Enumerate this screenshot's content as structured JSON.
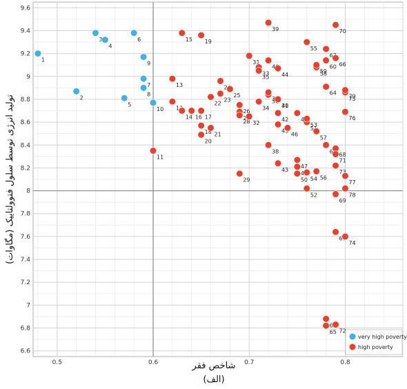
{
  "chart_data": {
    "type": "scatter",
    "xlabel": "شاخص فقر",
    "xlabel_sub": "(الف)",
    "ylabel": "تولید انرژی توسط سلول فتوولتاییک (مگاوات)",
    "xlim": [
      0.475,
      0.86
    ],
    "ylim": [
      6.55,
      9.65
    ],
    "x_ticks": [
      0.5,
      0.6,
      0.7,
      0.8
    ],
    "y_ticks": [
      6.6,
      6.8,
      7,
      7.2,
      7.4,
      7.6,
      7.8,
      8,
      8.2,
      8.4,
      8.6,
      8.8,
      9,
      9.2,
      9.4,
      9.6
    ],
    "reference_lines": {
      "x": 0.6,
      "y": 8.0
    },
    "grid": true,
    "legend_position": "bottom-right",
    "colors": {
      "very high poverty": "#3fb1e6",
      "high poverty": "#e8402c"
    },
    "series": [
      {
        "name": "very high poverty",
        "points": [
          {
            "id": "1",
            "x": 0.48,
            "y": 9.2
          },
          {
            "id": "2",
            "x": 0.52,
            "y": 8.87
          },
          {
            "id": "3",
            "x": 0.54,
            "y": 9.38
          },
          {
            "id": "4",
            "x": 0.55,
            "y": 9.32
          },
          {
            "id": "5",
            "x": 0.57,
            "y": 8.81
          },
          {
            "id": "6",
            "x": 0.58,
            "y": 9.38
          },
          {
            "id": "7",
            "x": 0.59,
            "y": 8.98
          },
          {
            "id": "8",
            "x": 0.59,
            "y": 8.9
          },
          {
            "id": "9",
            "x": 0.59,
            "y": 9.17
          },
          {
            "id": "10",
            "x": 0.6,
            "y": 8.77
          }
        ]
      },
      {
        "name": "high poverty",
        "points": [
          {
            "id": "11",
            "x": 0.6,
            "y": 8.35
          },
          {
            "id": "12",
            "x": 0.62,
            "y": 8.78
          },
          {
            "id": "13",
            "x": 0.62,
            "y": 8.98
          },
          {
            "id": "14",
            "x": 0.63,
            "y": 8.7
          },
          {
            "id": "15",
            "x": 0.63,
            "y": 9.38
          },
          {
            "id": "16",
            "x": 0.64,
            "y": 8.7
          },
          {
            "id": "17",
            "x": 0.65,
            "y": 8.7
          },
          {
            "id": "18",
            "x": 0.65,
            "y": 8.57
          },
          {
            "id": "19",
            "x": 0.65,
            "y": 9.36
          },
          {
            "id": "20",
            "x": 0.65,
            "y": 8.49
          },
          {
            "id": "21",
            "x": 0.66,
            "y": 8.55
          },
          {
            "id": "22",
            "x": 0.66,
            "y": 8.82
          },
          {
            "id": "23",
            "x": 0.67,
            "y": 8.85
          },
          {
            "id": "24",
            "x": 0.67,
            "y": 8.96
          },
          {
            "id": "25",
            "x": 0.68,
            "y": 8.89
          },
          {
            "id": "26",
            "x": 0.69,
            "y": 8.75
          },
          {
            "id": "27",
            "x": 0.69,
            "y": 8.69
          },
          {
            "id": "28",
            "x": 0.69,
            "y": 8.66
          },
          {
            "id": "29",
            "x": 0.69,
            "y": 8.15
          },
          {
            "id": "30",
            "x": 0.73,
            "y": 8.8
          },
          {
            "id": "31",
            "x": 0.7,
            "y": 9.18
          },
          {
            "id": "32",
            "x": 0.7,
            "y": 8.65
          },
          {
            "id": "33",
            "x": 0.71,
            "y": 9.08
          },
          {
            "id": "34",
            "x": 0.71,
            "y": 8.78
          },
          {
            "id": "35",
            "x": 0.71,
            "y": 9.05
          },
          {
            "id": "36",
            "x": 0.72,
            "y": 8.84
          },
          {
            "id": "37",
            "x": 0.72,
            "y": 8.86
          },
          {
            "id": "38",
            "x": 0.72,
            "y": 8.4
          },
          {
            "id": "39",
            "x": 0.72,
            "y": 9.47
          },
          {
            "id": "40",
            "x": 0.72,
            "y": 9.14
          },
          {
            "id": "41",
            "x": 0.73,
            "y": 8.8
          },
          {
            "id": "42",
            "x": 0.73,
            "y": 8.68
          },
          {
            "id": "43",
            "x": 0.73,
            "y": 8.24
          },
          {
            "id": "44",
            "x": 0.73,
            "y": 9.07
          },
          {
            "id": "45",
            "x": 0.73,
            "y": 8.58
          },
          {
            "id": "46",
            "x": 0.74,
            "y": 8.55
          },
          {
            "id": "47",
            "x": 0.75,
            "y": 8.27
          },
          {
            "id": "48",
            "x": 0.75,
            "y": 8.21
          },
          {
            "id": "49",
            "x": 0.75,
            "y": 8.68
          },
          {
            "id": "50",
            "x": 0.75,
            "y": 8.15
          },
          {
            "id": "51",
            "x": 0.76,
            "y": 8.6
          },
          {
            "id": "52",
            "x": 0.76,
            "y": 8.02
          },
          {
            "id": "53",
            "x": 0.76,
            "y": 8.63
          },
          {
            "id": "54",
            "x": 0.76,
            "y": 8.16
          },
          {
            "id": "55",
            "x": 0.76,
            "y": 9.3
          },
          {
            "id": "56",
            "x": 0.77,
            "y": 8.17
          },
          {
            "id": "57",
            "x": 0.77,
            "y": 8.52
          },
          {
            "id": "58",
            "x": 0.77,
            "y": 9.08
          },
          {
            "id": "59",
            "x": 0.77,
            "y": 9.1
          },
          {
            "id": "60",
            "x": 0.78,
            "y": 9.14
          },
          {
            "id": "61",
            "x": 0.78,
            "y": 6.88
          },
          {
            "id": "62",
            "x": 0.78,
            "y": 8.4
          },
          {
            "id": "63",
            "x": 0.78,
            "y": 9.24
          },
          {
            "id": "64",
            "x": 0.78,
            "y": 8.91
          },
          {
            "id": "65",
            "x": 0.78,
            "y": 6.82
          },
          {
            "id": "66",
            "x": 0.79,
            "y": 9.16
          },
          {
            "id": "67",
            "x": 0.79,
            "y": 7.64
          },
          {
            "id": "68",
            "x": 0.79,
            "y": 8.37
          },
          {
            "id": "69",
            "x": 0.79,
            "y": 7.97
          },
          {
            "id": "70",
            "x": 0.79,
            "y": 9.45
          },
          {
            "id": "71",
            "x": 0.79,
            "y": 8.32
          },
          {
            "id": "72",
            "x": 0.79,
            "y": 6.83
          },
          {
            "id": "73",
            "x": 0.79,
            "y": 8.22
          },
          {
            "id": "74",
            "x": 0.8,
            "y": 7.6
          },
          {
            "id": "75",
            "x": 0.8,
            "y": 8.86
          },
          {
            "id": "76",
            "x": 0.8,
            "y": 8.69
          },
          {
            "id": "77",
            "x": 0.8,
            "y": 8.13
          },
          {
            "id": "78",
            "x": 0.8,
            "y": 8.02
          },
          {
            "id": "79",
            "x": 0.8,
            "y": 8.88
          }
        ]
      }
    ]
  }
}
